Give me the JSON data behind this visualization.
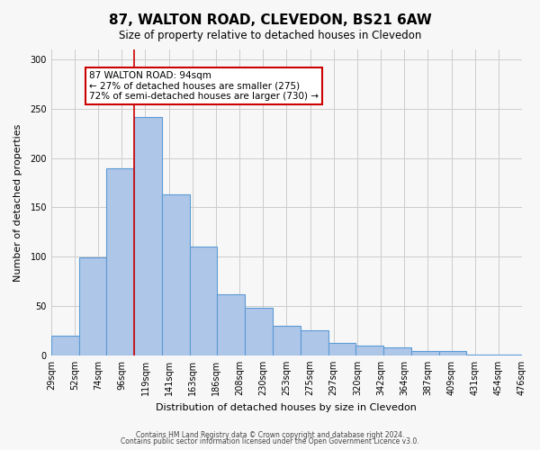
{
  "title": "87, WALTON ROAD, CLEVEDON, BS21 6AW",
  "subtitle": "Size of property relative to detached houses in Clevedon",
  "xlabel": "Distribution of detached houses by size in Clevedon",
  "ylabel": "Number of detached properties",
  "bar_values": [
    20,
    99,
    190,
    242,
    163,
    110,
    62,
    48,
    30,
    25,
    13,
    10,
    8,
    4,
    4,
    1,
    1
  ],
  "bin_labels": [
    "29sqm",
    "52sqm",
    "74sqm",
    "96sqm",
    "119sqm",
    "141sqm",
    "163sqm",
    "186sqm",
    "208sqm",
    "230sqm",
    "253sqm",
    "275sqm",
    "297sqm",
    "320sqm",
    "342sqm",
    "364sqm",
    "387sqm",
    "409sqm",
    "431sqm",
    "454sqm",
    "476sqm"
  ],
  "bar_color": "#aec6e8",
  "bar_edge_color": "#5b9bd5",
  "vline_x": 3,
  "vline_color": "#cc0000",
  "annotation_title": "87 WALTON ROAD: 94sqm",
  "annotation_line1": "← 27% of detached houses are smaller (275)",
  "annotation_line2": "72% of semi-detached houses are larger (730) →",
  "annotation_box_color": "#ffffff",
  "annotation_box_edge_color": "#cc0000",
  "ylim": [
    0,
    310
  ],
  "yticks": [
    0,
    50,
    100,
    150,
    200,
    250,
    300
  ],
  "footer1": "Contains HM Land Registry data © Crown copyright and database right 2024.",
  "footer2": "Contains public sector information licensed under the Open Government Licence v3.0.",
  "background_color": "#f7f7f7",
  "num_bins": 17,
  "num_labels": 21
}
